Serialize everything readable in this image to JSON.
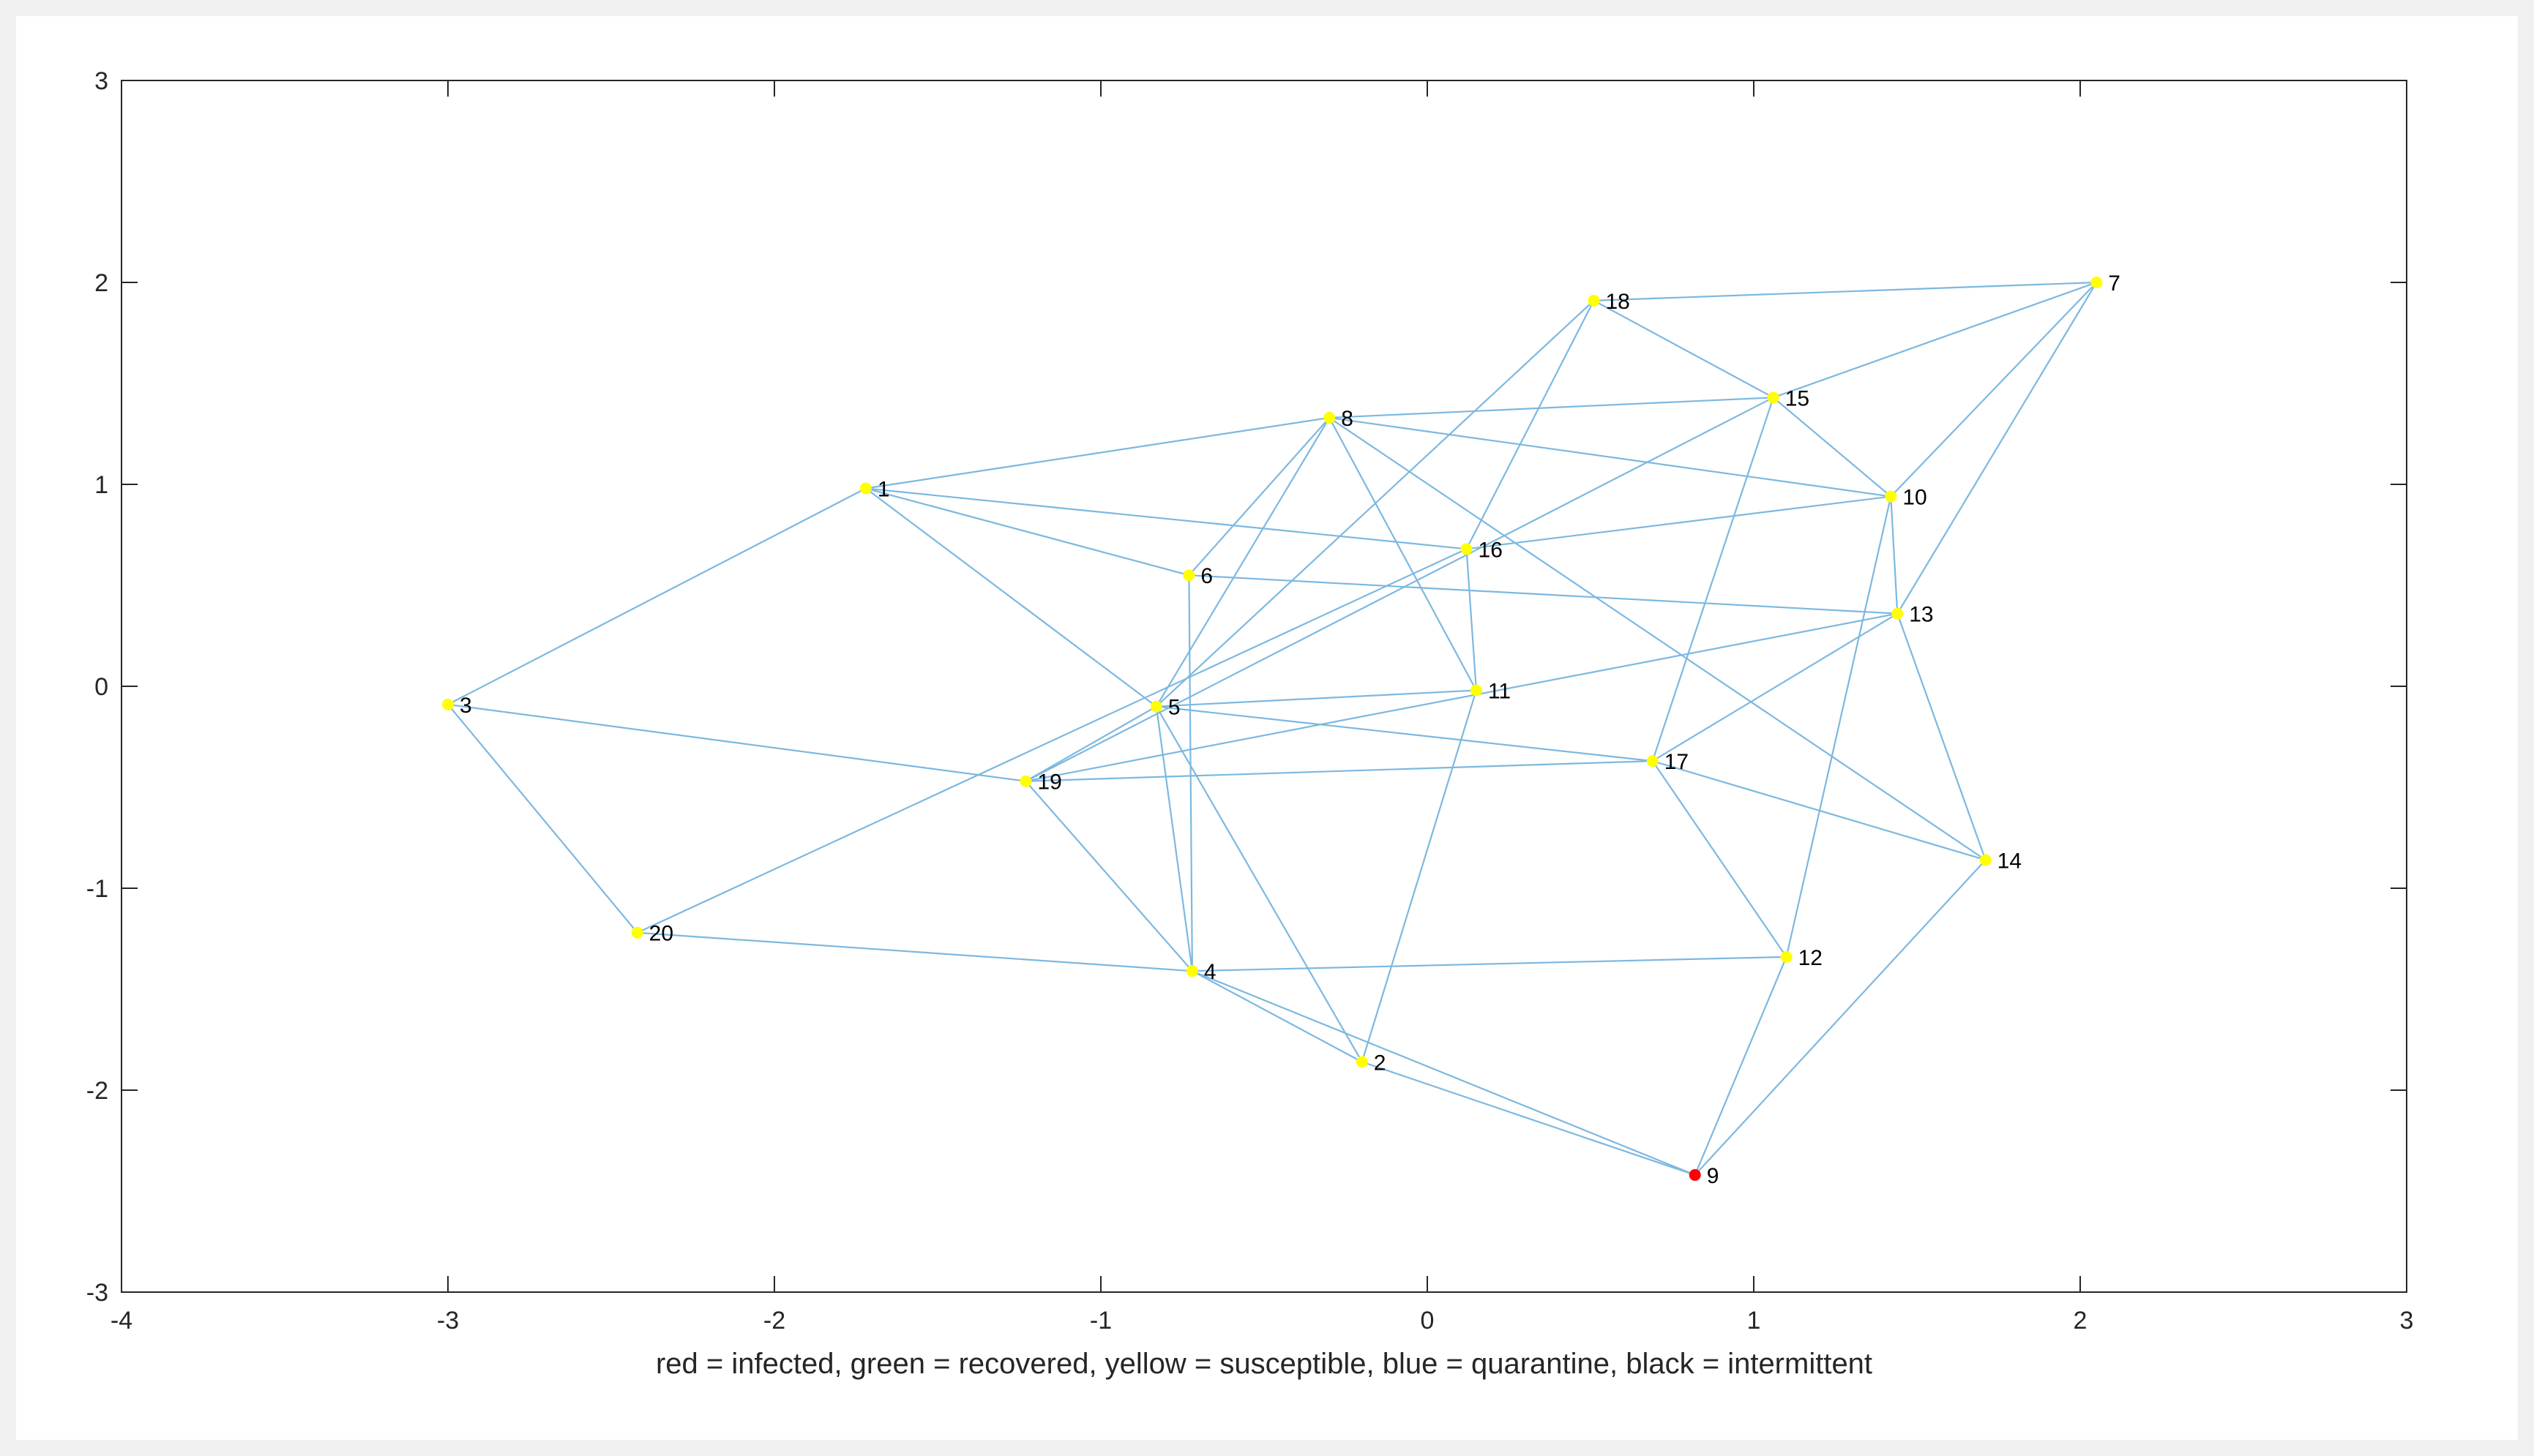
{
  "chart_data": {
    "type": "scatter",
    "title": "",
    "xlabel": "red = infected, green = recovered, yellow = susceptible, blue = quarantine, black = intermittent",
    "ylabel": "",
    "xlim": [
      -4,
      3
    ],
    "ylim": [
      -3,
      3
    ],
    "xticks": [
      -4,
      -3,
      -2,
      -1,
      0,
      1,
      2,
      3
    ],
    "yticks": [
      -3,
      -2,
      -1,
      0,
      1,
      2,
      3
    ],
    "grid": false,
    "colors": {
      "edge": "#7db8e0",
      "susceptible": "#ffff00",
      "infected": "#ff0000",
      "axis": "#262626"
    },
    "nodes": [
      {
        "id": "1",
        "x": -1.72,
        "y": 0.98,
        "state": "susceptible"
      },
      {
        "id": "2",
        "x": -0.2,
        "y": -1.86,
        "state": "susceptible"
      },
      {
        "id": "3",
        "x": -3.0,
        "y": -0.09,
        "state": "susceptible"
      },
      {
        "id": "4",
        "x": -0.72,
        "y": -1.41,
        "state": "susceptible"
      },
      {
        "id": "5",
        "x": -0.83,
        "y": -0.1,
        "state": "susceptible"
      },
      {
        "id": "6",
        "x": -0.73,
        "y": 0.55,
        "state": "susceptible"
      },
      {
        "id": "7",
        "x": 2.05,
        "y": 2.0,
        "state": "susceptible"
      },
      {
        "id": "8",
        "x": -0.3,
        "y": 1.33,
        "state": "susceptible"
      },
      {
        "id": "9",
        "x": 0.82,
        "y": -2.42,
        "state": "infected"
      },
      {
        "id": "10",
        "x": 1.42,
        "y": 0.94,
        "state": "susceptible"
      },
      {
        "id": "11",
        "x": 0.15,
        "y": -0.02,
        "state": "susceptible"
      },
      {
        "id": "12",
        "x": 1.1,
        "y": -1.34,
        "state": "susceptible"
      },
      {
        "id": "13",
        "x": 1.44,
        "y": 0.36,
        "state": "susceptible"
      },
      {
        "id": "14",
        "x": 1.71,
        "y": -0.86,
        "state": "susceptible"
      },
      {
        "id": "15",
        "x": 1.06,
        "y": 1.43,
        "state": "susceptible"
      },
      {
        "id": "16",
        "x": 0.12,
        "y": 0.68,
        "state": "susceptible"
      },
      {
        "id": "17",
        "x": 0.69,
        "y": -0.37,
        "state": "susceptible"
      },
      {
        "id": "18",
        "x": 0.51,
        "y": 1.91,
        "state": "susceptible"
      },
      {
        "id": "19",
        "x": -1.23,
        "y": -0.47,
        "state": "susceptible"
      },
      {
        "id": "20",
        "x": -2.42,
        "y": -1.22,
        "state": "susceptible"
      }
    ],
    "edges": [
      [
        "1",
        "3"
      ],
      [
        "1",
        "8"
      ],
      [
        "1",
        "16"
      ],
      [
        "1",
        "6"
      ],
      [
        "1",
        "5"
      ],
      [
        "3",
        "19"
      ],
      [
        "3",
        "20"
      ],
      [
        "20",
        "4"
      ],
      [
        "20",
        "16"
      ],
      [
        "8",
        "15"
      ],
      [
        "8",
        "10"
      ],
      [
        "8",
        "6"
      ],
      [
        "8",
        "5"
      ],
      [
        "8",
        "11"
      ],
      [
        "8",
        "14"
      ],
      [
        "18",
        "7"
      ],
      [
        "18",
        "15"
      ],
      [
        "18",
        "5"
      ],
      [
        "18",
        "16"
      ],
      [
        "7",
        "15"
      ],
      [
        "7",
        "10"
      ],
      [
        "7",
        "13"
      ],
      [
        "15",
        "10"
      ],
      [
        "15",
        "17"
      ],
      [
        "15",
        "19"
      ],
      [
        "10",
        "16"
      ],
      [
        "10",
        "13"
      ],
      [
        "10",
        "12"
      ],
      [
        "6",
        "13"
      ],
      [
        "6",
        "4"
      ],
      [
        "16",
        "11"
      ],
      [
        "13",
        "19"
      ],
      [
        "13",
        "17"
      ],
      [
        "13",
        "14"
      ],
      [
        "11",
        "5"
      ],
      [
        "11",
        "2"
      ],
      [
        "5",
        "17"
      ],
      [
        "5",
        "19"
      ],
      [
        "5",
        "4"
      ],
      [
        "5",
        "2"
      ],
      [
        "17",
        "19"
      ],
      [
        "17",
        "12"
      ],
      [
        "17",
        "14"
      ],
      [
        "19",
        "4"
      ],
      [
        "4",
        "12"
      ],
      [
        "4",
        "2"
      ],
      [
        "4",
        "9"
      ],
      [
        "2",
        "9"
      ],
      [
        "12",
        "9"
      ],
      [
        "14",
        "9"
      ]
    ]
  }
}
